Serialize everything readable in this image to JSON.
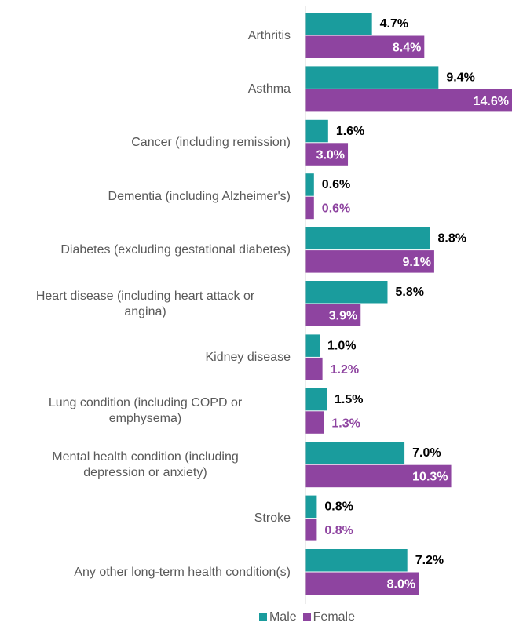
{
  "chart_data": {
    "type": "bar",
    "orientation": "horizontal",
    "categories": [
      "Arthritis",
      "Asthma",
      "Cancer (including remission)",
      "Dementia (including Alzheimer's)",
      "Diabetes (excluding gestational diabetes)",
      "Heart disease (including heart attack or\nangina)",
      "Kidney disease",
      "Lung condition (including COPD or\nemphysema)",
      "Mental health condition (including\ndepression or anxiety)",
      "Stroke",
      "Any other long-term health condition(s)"
    ],
    "series": [
      {
        "name": "Male",
        "color": "#1a9c9d",
        "values": [
          4.7,
          9.4,
          1.6,
          0.6,
          8.8,
          5.8,
          1.0,
          1.5,
          7.0,
          0.8,
          7.2
        ],
        "value_labels": [
          "4.7%",
          "9.4%",
          "1.6%",
          "0.6%",
          "8.8%",
          "5.8%",
          "1.0%",
          "1.5%",
          "7.0%",
          "0.8%",
          "7.2%"
        ]
      },
      {
        "name": "Female",
        "color": "#8e44a0",
        "values": [
          8.4,
          14.6,
          3.0,
          0.6,
          9.1,
          3.9,
          1.2,
          1.3,
          10.3,
          0.8,
          8.0
        ],
        "value_labels": [
          "8.4%",
          "14.6%",
          "3.0%",
          "0.6%",
          "9.1%",
          "3.9%",
          "1.2%",
          "1.3%",
          "10.3%",
          "0.8%",
          "8.0%"
        ]
      }
    ],
    "legend": "bottom"
  }
}
